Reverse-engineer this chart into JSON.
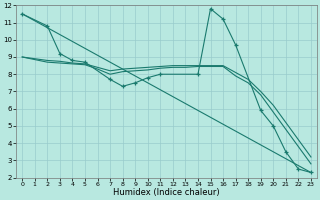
{
  "xlabel": "Humidex (Indice chaleur)",
  "bg_color": "#b8e8e0",
  "line_color": "#1a7a6e",
  "grid_color": "#99cccc",
  "xlim": [
    -0.5,
    23.5
  ],
  "ylim": [
    2,
    12
  ],
  "xticks": [
    0,
    1,
    2,
    3,
    4,
    5,
    6,
    7,
    8,
    9,
    10,
    11,
    12,
    13,
    14,
    15,
    16,
    17,
    18,
    19,
    20,
    21,
    22,
    23
  ],
  "yticks": [
    2,
    3,
    4,
    5,
    6,
    7,
    8,
    9,
    10,
    11,
    12
  ],
  "line1_x": [
    0,
    2,
    3,
    4,
    5,
    7,
    8,
    9,
    10,
    11,
    14,
    15,
    16,
    17,
    19,
    20,
    21,
    22,
    23
  ],
  "line1_y": [
    11.5,
    10.8,
    9.2,
    8.8,
    8.7,
    7.7,
    7.3,
    7.5,
    7.8,
    8.0,
    8.0,
    11.8,
    11.2,
    9.7,
    5.9,
    5.0,
    3.5,
    2.5,
    2.3
  ],
  "line2_x": [
    0,
    23
  ],
  "line2_y": [
    11.5,
    2.3
  ],
  "line3_x": [
    0,
    2,
    3,
    4,
    5,
    6,
    7,
    8,
    9,
    10,
    11,
    12,
    13,
    14,
    15,
    16,
    17,
    18,
    19,
    20,
    21,
    22,
    23
  ],
  "line3_y": [
    9.0,
    8.8,
    8.75,
    8.65,
    8.6,
    8.4,
    8.2,
    8.3,
    8.35,
    8.4,
    8.45,
    8.5,
    8.5,
    8.5,
    8.5,
    8.5,
    8.1,
    7.7,
    7.0,
    6.2,
    5.2,
    4.2,
    3.2
  ],
  "line4_x": [
    0,
    2,
    3,
    4,
    5,
    6,
    7,
    8,
    9,
    10,
    11,
    12,
    13,
    14,
    15,
    16,
    17,
    18,
    19,
    20,
    21,
    22,
    23
  ],
  "line4_y": [
    9.0,
    8.7,
    8.65,
    8.6,
    8.55,
    8.3,
    8.0,
    8.15,
    8.2,
    8.25,
    8.35,
    8.4,
    8.4,
    8.45,
    8.45,
    8.45,
    7.9,
    7.5,
    6.8,
    5.8,
    4.8,
    3.8,
    2.8
  ]
}
